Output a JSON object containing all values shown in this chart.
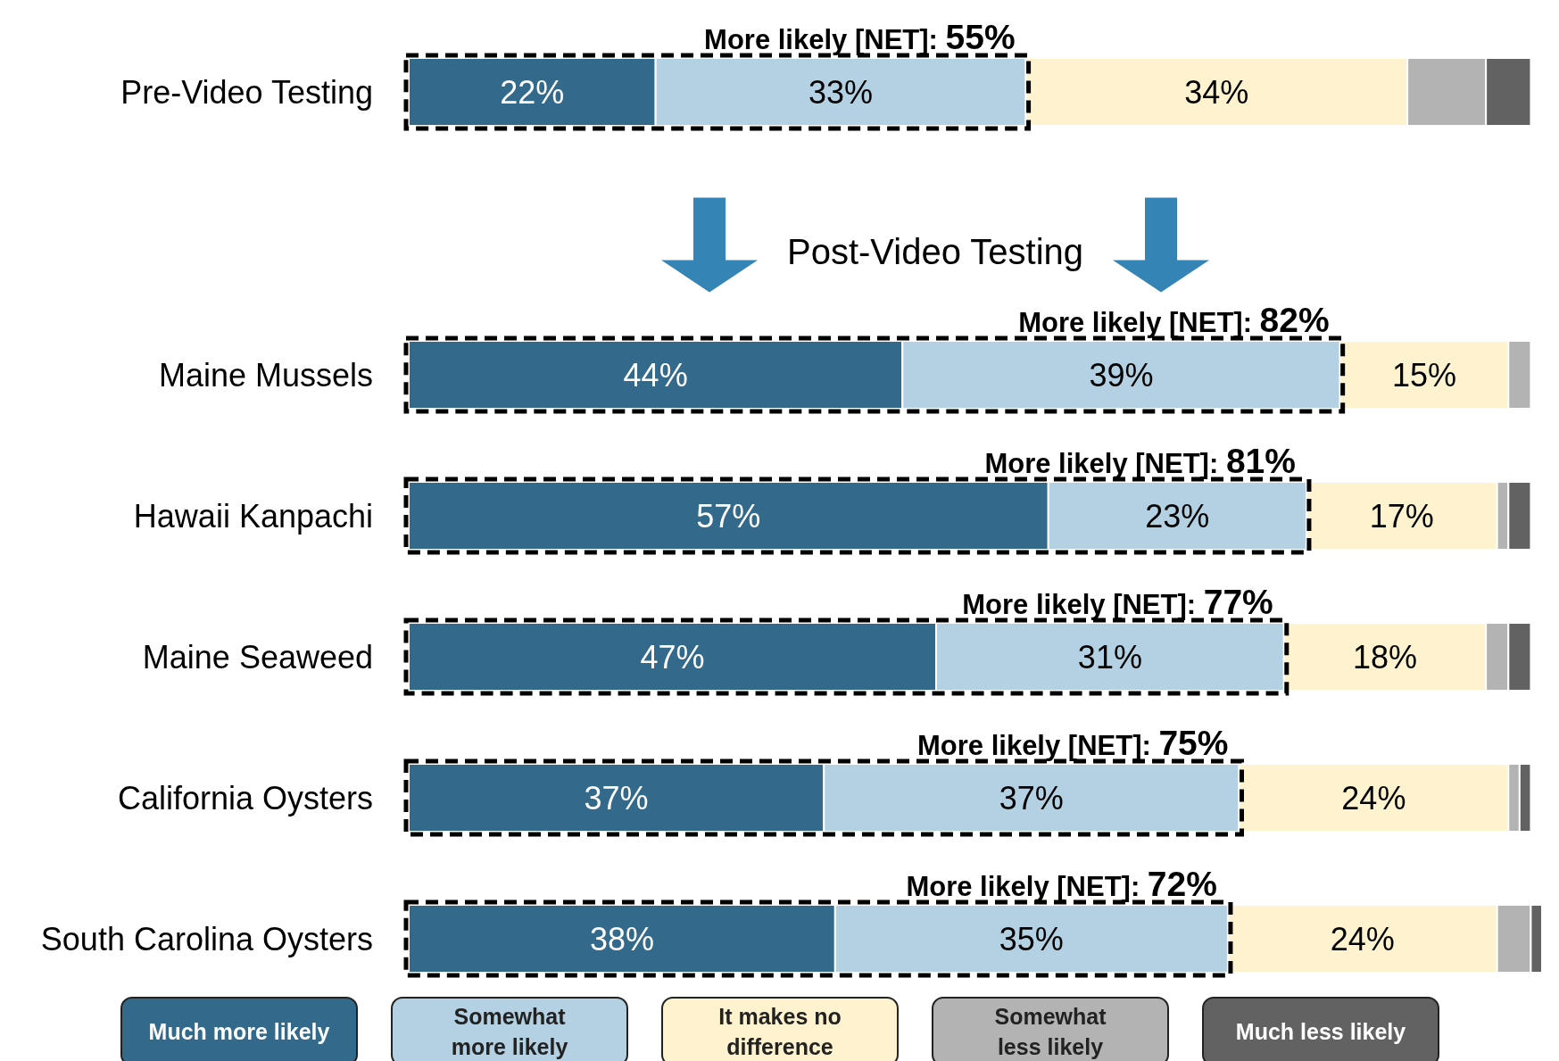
{
  "chart_data": {
    "type": "bar",
    "orientation": "horizontal",
    "stacked": true,
    "categories": [
      "Pre-Video Testing",
      "Maine Mussels",
      "Hawaii Kanpachi",
      "Maine Seaweed",
      "California Oysters",
      "South Carolina Oysters"
    ],
    "series": [
      {
        "name": "Much more likely",
        "color": "#33698a",
        "values": [
          22,
          44,
          57,
          47,
          37,
          38
        ],
        "value_labels": [
          "22%",
          "44%",
          "57%",
          "47%",
          "37%",
          "38%"
        ]
      },
      {
        "name": "Somewhat more likely",
        "color": "#b3d1e2",
        "values": [
          33,
          39,
          23,
          31,
          37,
          35
        ],
        "value_labels": [
          "33%",
          "39%",
          "23%",
          "31%",
          "37%",
          "35%"
        ]
      },
      {
        "name": "It makes no difference",
        "color": "#fef2cf",
        "values": [
          34,
          15,
          17,
          18,
          24,
          24
        ],
        "value_labels": [
          "34%",
          "15%",
          "17%",
          "18%",
          "24%",
          "24%"
        ]
      },
      {
        "name": "Somewhat less likely",
        "color": "#b3b3b3",
        "values": [
          7,
          2,
          1,
          2,
          1,
          3
        ],
        "value_labels": [
          null,
          null,
          null,
          null,
          null,
          null
        ]
      },
      {
        "name": "Much less likely",
        "color": "#626262",
        "values": [
          4,
          0,
          2,
          2,
          1,
          1
        ],
        "value_labels": [
          null,
          null,
          null,
          null,
          null,
          null
        ]
      }
    ],
    "annotations": [
      "More likely [NET]: 55%",
      "More likely [NET]: 82%",
      "More likely [NET]: 81%",
      "More likely [NET]: 77%",
      "More likely [NET]: 75%",
      "More likely [NET]: 72%",
      "Post-Video Testing"
    ],
    "legend": "bottom"
  }
}
